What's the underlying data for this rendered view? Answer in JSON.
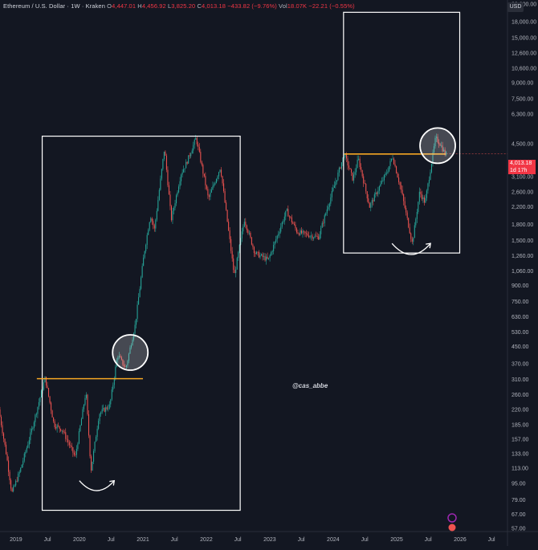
{
  "header": {
    "symbol": "Ethereum / U.S. Dollar · 1W · Kraken",
    "o_label": "O",
    "o_value": "4,447.01",
    "h_label": "H",
    "h_value": "4,456.92",
    "l_label": "L",
    "l_value": "3,825.20",
    "c_label": "C",
    "c_value": "4,013.18",
    "change": "−433.82 (−9.76%)",
    "vol_label": "Vol",
    "vol_value": "18.07K",
    "vol_change": "−22.21 (−0.55%)"
  },
  "currency_button": "USD",
  "last_price": {
    "price": "4,013.18",
    "countdown": "1d 17h"
  },
  "watermark": "@cas_abbe",
  "colors": {
    "background": "#131722",
    "up": "#26a69a",
    "down": "#ef5350",
    "support_line": "#f5a623",
    "annotation": "#ffffff",
    "axis_text": "#b2b5be"
  },
  "chart_data": {
    "type": "candlestick",
    "title": "",
    "xlabel": "",
    "ylabel": "",
    "y_scale": "log",
    "ylim": [
      55,
      23000
    ],
    "xlim": [
      "2018-10-01",
      "2026-10-01"
    ],
    "x_ticks": [
      {
        "label": "2019",
        "date": "2019-01-01"
      },
      {
        "label": "Jul",
        "date": "2019-07-01"
      },
      {
        "label": "2020",
        "date": "2020-01-01"
      },
      {
        "label": "Jul",
        "date": "2020-07-01"
      },
      {
        "label": "2021",
        "date": "2021-01-01"
      },
      {
        "label": "Jul",
        "date": "2021-07-01"
      },
      {
        "label": "2022",
        "date": "2022-01-01"
      },
      {
        "label": "Jul",
        "date": "2022-07-01"
      },
      {
        "label": "2023",
        "date": "2023-01-01"
      },
      {
        "label": "Jul",
        "date": "2023-07-01"
      },
      {
        "label": "2024",
        "date": "2024-01-01"
      },
      {
        "label": "Jul",
        "date": "2024-07-01"
      },
      {
        "label": "2025",
        "date": "2025-01-01"
      },
      {
        "label": "Jul",
        "date": "2025-07-01"
      },
      {
        "label": "2026",
        "date": "2026-01-01"
      },
      {
        "label": "Jul",
        "date": "2026-07-01"
      }
    ],
    "y_ticks": [
      {
        "label": "22,000.00",
        "value": 22000
      },
      {
        "label": "18,000.00",
        "value": 18000
      },
      {
        "label": "15,000.00",
        "value": 15000
      },
      {
        "label": "12,600.00",
        "value": 12600
      },
      {
        "label": "10,600.00",
        "value": 10600
      },
      {
        "label": "9,000.00",
        "value": 9000
      },
      {
        "label": "7,500.00",
        "value": 7500
      },
      {
        "label": "6,300.00",
        "value": 6300
      },
      {
        "label": "4,500.00",
        "value": 4500
      },
      {
        "label": "3,100.00",
        "value": 3100
      },
      {
        "label": "2,600.00",
        "value": 2600
      },
      {
        "label": "2,200.00",
        "value": 2200
      },
      {
        "label": "1,800.00",
        "value": 1800
      },
      {
        "label": "1,500.00",
        "value": 1500
      },
      {
        "label": "1,260.00",
        "value": 1260
      },
      {
        "label": "1,060.00",
        "value": 1060
      },
      {
        "label": "900.00",
        "value": 900
      },
      {
        "label": "750.00",
        "value": 750
      },
      {
        "label": "630.00",
        "value": 630
      },
      {
        "label": "530.00",
        "value": 530
      },
      {
        "label": "450.00",
        "value": 450
      },
      {
        "label": "370.00",
        "value": 370
      },
      {
        "label": "310.00",
        "value": 310
      },
      {
        "label": "260.00",
        "value": 260
      },
      {
        "label": "220.00",
        "value": 220
      },
      {
        "label": "185.00",
        "value": 185
      },
      {
        "label": "157.00",
        "value": 157
      },
      {
        "label": "133.00",
        "value": 133
      },
      {
        "label": "113.00",
        "value": 113
      },
      {
        "label": "95.00",
        "value": 95
      },
      {
        "label": "79.00",
        "value": 79
      },
      {
        "label": "67.00",
        "value": 67
      },
      {
        "label": "57.00",
        "value": 57
      }
    ],
    "price_path": [
      [
        "2018-10-01",
        220
      ],
      [
        "2018-11-15",
        130
      ],
      [
        "2018-12-15",
        85
      ],
      [
        "2019-02-01",
        110
      ],
      [
        "2019-04-01",
        165
      ],
      [
        "2019-06-25",
        315
      ],
      [
        "2019-08-15",
        185
      ],
      [
        "2019-10-01",
        175
      ],
      [
        "2019-12-15",
        128
      ],
      [
        "2020-02-15",
        270
      ],
      [
        "2020-03-15",
        110
      ],
      [
        "2020-05-01",
        210
      ],
      [
        "2020-07-01",
        230
      ],
      [
        "2020-08-15",
        410
      ],
      [
        "2020-10-01",
        350
      ],
      [
        "2020-11-25",
        580
      ],
      [
        "2021-01-15",
        1300
      ],
      [
        "2021-02-20",
        2000
      ],
      [
        "2021-03-15",
        1700
      ],
      [
        "2021-05-12",
        4300
      ],
      [
        "2021-06-20",
        1900
      ],
      [
        "2021-08-15",
        3200
      ],
      [
        "2021-09-15",
        3600
      ],
      [
        "2021-11-10",
        4800
      ],
      [
        "2022-01-20",
        2400
      ],
      [
        "2022-03-30",
        3450
      ],
      [
        "2022-06-18",
        1000
      ],
      [
        "2022-08-15",
        1900
      ],
      [
        "2022-10-15",
        1300
      ],
      [
        "2022-12-31",
        1200
      ],
      [
        "2023-04-15",
        2100
      ],
      [
        "2023-06-15",
        1650
      ],
      [
        "2023-10-15",
        1550
      ],
      [
        "2023-12-15",
        2300
      ],
      [
        "2024-03-12",
        4000
      ],
      [
        "2024-05-01",
        3000
      ],
      [
        "2024-06-01",
        3800
      ],
      [
        "2024-08-05",
        2200
      ],
      [
        "2024-11-15",
        3300
      ],
      [
        "2024-12-15",
        3900
      ],
      [
        "2025-02-01",
        2700
      ],
      [
        "2025-04-08",
        1450
      ],
      [
        "2025-05-20",
        2600
      ],
      [
        "2025-06-20",
        2300
      ],
      [
        "2025-08-20",
        4800
      ],
      [
        "2025-09-15",
        4500
      ],
      [
        "2025-10-13",
        4013
      ]
    ],
    "annotations": {
      "boxes": [
        {
          "x0": "2019-06-01",
          "x1": "2022-07-15",
          "y0": 4900,
          "y1": 70
        },
        {
          "x0": "2024-03-01",
          "x1": "2025-12-30",
          "y0": 20000,
          "y1": 1300
        }
      ],
      "support_lines": [
        {
          "x0": "2019-05-01",
          "x1": "2021-01-01",
          "y": 312
        },
        {
          "x0": "2024-03-05",
          "x1": "2025-10-10",
          "y": 4000
        }
      ],
      "circles": [
        {
          "x": "2020-10-20",
          "y": 420
        },
        {
          "x": "2025-08-25",
          "y": 4400
        }
      ],
      "curved_arrows": [
        {
          "x0": "2020-01-01",
          "x1": "2020-07-20",
          "y_low": 87,
          "y_top": 98
        },
        {
          "x0": "2024-12-05",
          "x1": "2025-07-15",
          "y_low": 1270,
          "y_top": 1450
        }
      ]
    }
  }
}
